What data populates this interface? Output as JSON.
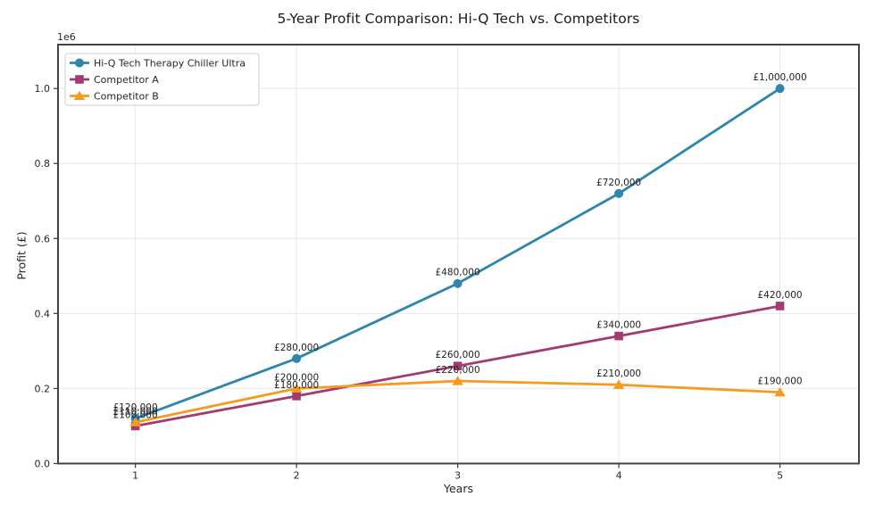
{
  "chart_data": {
    "type": "line",
    "title": "5-Year Profit Comparison: Hi-Q Tech vs. Competitors",
    "xlabel": "Years",
    "ylabel": "Profit (£)",
    "offset_text": "1e6",
    "x": [
      1,
      2,
      3,
      4,
      5
    ],
    "xtick_labels": [
      "1",
      "2",
      "3",
      "4",
      "5"
    ],
    "yticks": [
      0,
      200000,
      400000,
      600000,
      800000,
      1000000
    ],
    "ytick_labels": [
      "0.0",
      "0.2",
      "0.4",
      "0.6",
      "0.8",
      "1.0"
    ],
    "xlim": [
      0.52,
      5.49
    ],
    "ylim": [
      0,
      1117000
    ],
    "grid": true,
    "legend_position": "upper left",
    "series": [
      {
        "name": "Hi-Q Tech Therapy Chiller Ultra",
        "color": "#2E86AB",
        "marker": "circle",
        "values": [
          120000,
          280000,
          480000,
          720000,
          1000000
        ],
        "point_labels": [
          "£120,000",
          "£280,000",
          "£480,000",
          "£720,000",
          "£1,000,000"
        ]
      },
      {
        "name": "Competitor A",
        "color": "#A23B72",
        "marker": "square",
        "values": [
          100000,
          180000,
          260000,
          340000,
          420000
        ],
        "point_labels": [
          "£100,000",
          "£180,000",
          "£260,000",
          "£340,000",
          "£420,000"
        ]
      },
      {
        "name": "Competitor B",
        "color": "#F39C1F",
        "marker": "triangle",
        "values": [
          110000,
          200000,
          220000,
          210000,
          190000
        ],
        "point_labels": [
          "£110,000",
          "£200,000",
          "£220,000",
          "£210,000",
          "£190,000"
        ]
      }
    ],
    "colors": {
      "grid": "#e8e8e8",
      "spine": "#434343",
      "tick_text": "#262626",
      "label_text": "#1f1f1f",
      "legend_border": "#cccccc",
      "legend_bg": "#ffffff",
      "background": "#ffffff"
    }
  }
}
